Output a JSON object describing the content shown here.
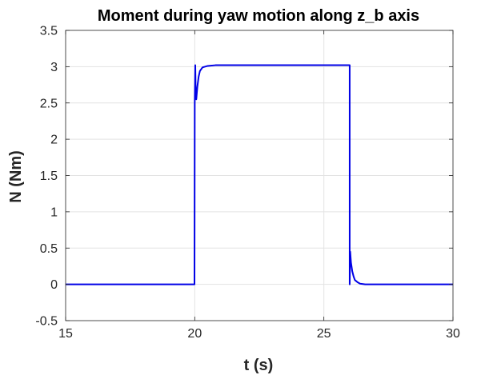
{
  "chart_data": {
    "type": "line",
    "title": "Moment during yaw motion along z_b axis",
    "xlabel": "t (s)",
    "ylabel": "N (Nm)",
    "xlim": [
      15,
      30
    ],
    "ylim": [
      -0.5,
      3.5
    ],
    "xticks": [
      "15",
      "20",
      "25",
      "30"
    ],
    "yticks": [
      "-0.5",
      "0",
      "0.5",
      "1",
      "1.5",
      "2",
      "2.5",
      "3",
      "3.5"
    ],
    "grid": true,
    "series": [
      {
        "color": "#0000e6",
        "x": [
          15,
          19.99,
          20.0,
          20.02,
          20.04,
          20.06,
          20.1,
          20.15,
          20.2,
          20.3,
          20.5,
          20.8,
          21.2,
          26.0,
          26.0,
          26.02,
          26.05,
          26.1,
          26.15,
          26.2,
          26.3,
          26.4,
          26.6,
          27.0,
          30
        ],
        "y": [
          0,
          0,
          2.5,
          3.02,
          2.6,
          2.55,
          2.72,
          2.86,
          2.94,
          2.99,
          3.01,
          3.02,
          3.02,
          3.02,
          0,
          0.45,
          0.3,
          0.18,
          0.11,
          0.06,
          0.03,
          0.01,
          0,
          0,
          0
        ]
      }
    ]
  }
}
